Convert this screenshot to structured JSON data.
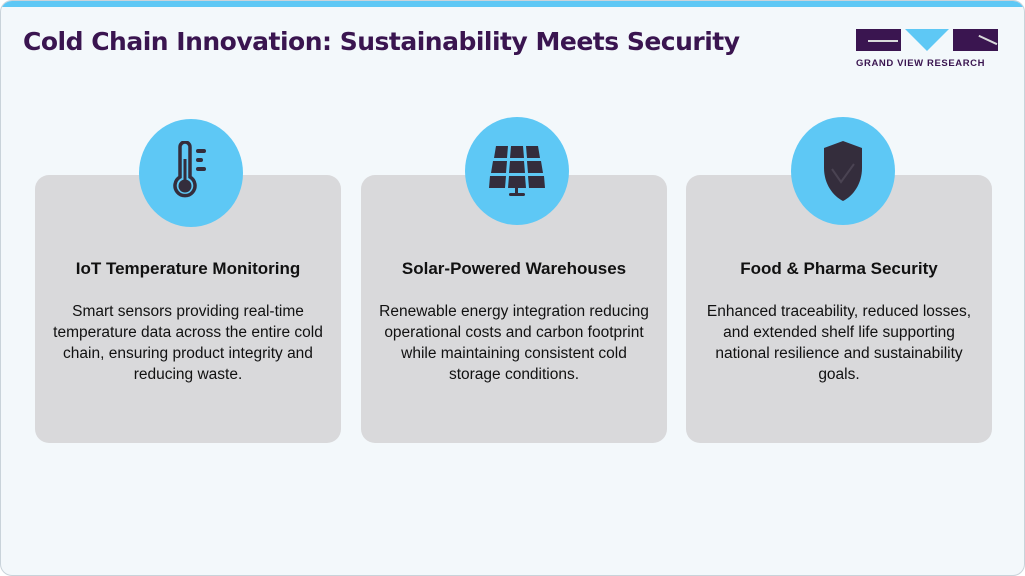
{
  "header": {
    "title": "Cold Chain Innovation: Sustainability Meets Security",
    "logo_text": "GRAND VIEW RESEARCH"
  },
  "colors": {
    "accent": "#5ec8f5",
    "brand": "#3a1550",
    "card": "#d9d9db",
    "icon": "#342d3c"
  },
  "cards": [
    {
      "icon": "thermometer-icon",
      "title": "IoT Temperature Monitoring",
      "text": "Smart sensors providing real-time temperature data across the entire cold chain, ensuring product integrity and reducing waste."
    },
    {
      "icon": "solar-panel-icon",
      "title": "Solar-Powered Warehouses",
      "text": "Renewable energy integration reducing operational costs and carbon footprint while maintaining consistent cold storage conditions."
    },
    {
      "icon": "shield-check-icon",
      "title": "Food & Pharma Security",
      "text": "Enhanced traceability, reduced losses, and extended shelf life supporting national resilience and sustainability goals."
    }
  ]
}
